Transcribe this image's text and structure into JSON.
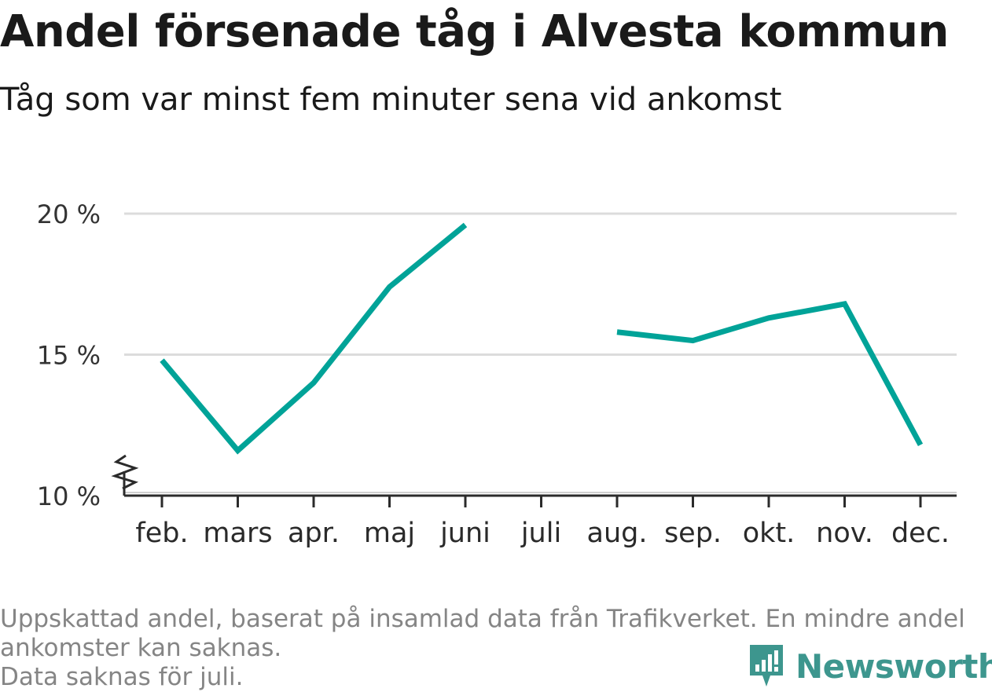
{
  "title": "Andel försenade tåg i Alvesta kommun",
  "subtitle": "Tåg som var minst fem minuter sena vid ankomst",
  "footer": {
    "line1": "Uppskattad andel, baserat på insamlad data från Trafikverket. En mindre andel",
    "line2": "ankomster kan saknas.",
    "line3": "Data saknas för juli."
  },
  "brand": {
    "name": "Newsworthy",
    "color": "#3d968e",
    "icon": "bar-chart-icon"
  },
  "chart_data": {
    "type": "line",
    "categories": [
      "feb.",
      "mars",
      "apr.",
      "maj",
      "juni",
      "juli",
      "aug.",
      "sep.",
      "okt.",
      "nov.",
      "dec."
    ],
    "series": [
      {
        "values": [
          14.8,
          11.6,
          14.0,
          17.4,
          19.6,
          null,
          15.8,
          15.5,
          16.3,
          16.8,
          11.8
        ],
        "color": "#00a398"
      }
    ],
    "yticks": [
      "10 %",
      "15 %",
      "20 %"
    ],
    "ylim": [
      10,
      20
    ],
    "y_axis_break": true,
    "grid": true,
    "missing": [
      "juli"
    ]
  }
}
